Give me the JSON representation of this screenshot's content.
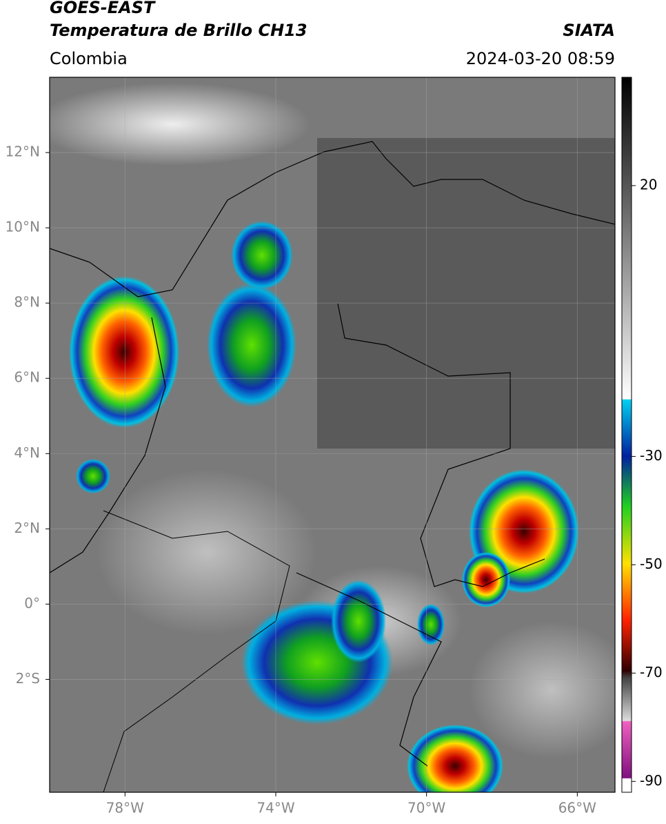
{
  "header": {
    "title": "GOES-EAST",
    "subtitle": "Temperatura de Brillo CH13",
    "region": "Colombia",
    "source": "SIATA",
    "datetime": "2024-03-20 08:59"
  },
  "map": {
    "xlim": [
      -80,
      -65
    ],
    "ylim": [
      -5,
      14
    ],
    "grid": true,
    "xticks": [
      {
        "value": -78,
        "label": "78°W"
      },
      {
        "value": -74,
        "label": "74°W"
      },
      {
        "value": -70,
        "label": "70°W"
      },
      {
        "value": -66,
        "label": "66°W"
      }
    ],
    "yticks": [
      {
        "value": 12,
        "label": "12°N"
      },
      {
        "value": 10,
        "label": "10°N"
      },
      {
        "value": 8,
        "label": "8°N"
      },
      {
        "value": 6,
        "label": "6°N"
      },
      {
        "value": 4,
        "label": "4°N"
      },
      {
        "value": 2,
        "label": "2°N"
      },
      {
        "value": 0,
        "label": "0°"
      },
      {
        "value": -2,
        "label": "2°S"
      }
    ]
  },
  "colorbar": {
    "clim": [
      -92,
      40
    ],
    "ticks": [
      20,
      -30,
      -50,
      -70,
      -90
    ]
  }
}
